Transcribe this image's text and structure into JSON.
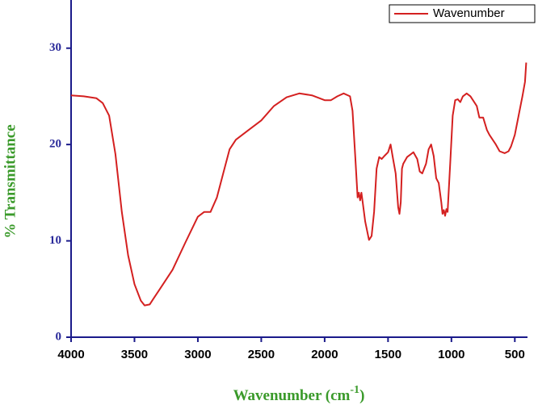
{
  "chart_data": {
    "type": "line",
    "xlabel": [
      "Wavenumber (cm",
      "-1",
      ")"
    ],
    "ylabel": "% Transmittance",
    "xlim": [
      4000,
      400
    ],
    "ylim": [
      0,
      35
    ],
    "xticks": [
      4000,
      3500,
      3000,
      2500,
      2000,
      1500,
      1000,
      500
    ],
    "yticks": [
      0,
      10,
      20,
      30
    ],
    "legend": "top-right",
    "x": [
      4000,
      3900,
      3800,
      3750,
      3700,
      3650,
      3600,
      3550,
      3500,
      3450,
      3420,
      3380,
      3350,
      3300,
      3200,
      3100,
      3000,
      2950,
      2900,
      2850,
      2800,
      2750,
      2700,
      2600,
      2500,
      2400,
      2300,
      2200,
      2100,
      2000,
      1950,
      1900,
      1850,
      1800,
      1780,
      1760,
      1740,
      1730,
      1720,
      1710,
      1700,
      1680,
      1650,
      1630,
      1610,
      1590,
      1570,
      1550,
      1530,
      1500,
      1480,
      1460,
      1440,
      1420,
      1410,
      1400,
      1390,
      1380,
      1350,
      1300,
      1270,
      1250,
      1230,
      1200,
      1180,
      1160,
      1140,
      1120,
      1100,
      1080,
      1070,
      1060,
      1050,
      1040,
      1030,
      1010,
      990,
      970,
      950,
      930,
      910,
      880,
      850,
      800,
      780,
      750,
      720,
      700,
      650,
      620,
      580,
      550,
      530,
      500,
      470,
      440,
      420,
      410
    ],
    "series": [
      {
        "name": "Wavenumber",
        "color": "#d42020",
        "values": [
          25.1,
          25.0,
          24.8,
          24.3,
          23,
          19,
          13,
          8.5,
          5.5,
          3.8,
          3.3,
          3.4,
          4.0,
          5.0,
          7.0,
          9.8,
          12.5,
          13.0,
          13.0,
          14.5,
          17,
          19.5,
          20.5,
          21.5,
          22.5,
          24.0,
          24.9,
          25.3,
          25.1,
          24.6,
          24.6,
          25.0,
          25.3,
          25.0,
          23.5,
          19,
          14.5,
          15,
          14.2,
          15,
          14,
          12,
          10.1,
          10.5,
          13,
          17.5,
          18.7,
          18.5,
          18.8,
          19.2,
          20,
          18.5,
          17,
          13.5,
          12.8,
          14,
          17.5,
          18.0,
          18.7,
          19.2,
          18.5,
          17.2,
          17.0,
          18,
          19.5,
          20.0,
          18.8,
          16.5,
          16,
          14,
          12.8,
          13.2,
          12.6,
          13.3,
          13,
          18,
          23,
          24.6,
          24.7,
          24.4,
          25,
          25.3,
          25,
          24,
          22.8,
          22.8,
          21.5,
          21,
          20,
          19.3,
          19.1,
          19.3,
          19.8,
          21,
          23,
          25,
          26.5,
          28.5
        ]
      }
    ]
  }
}
